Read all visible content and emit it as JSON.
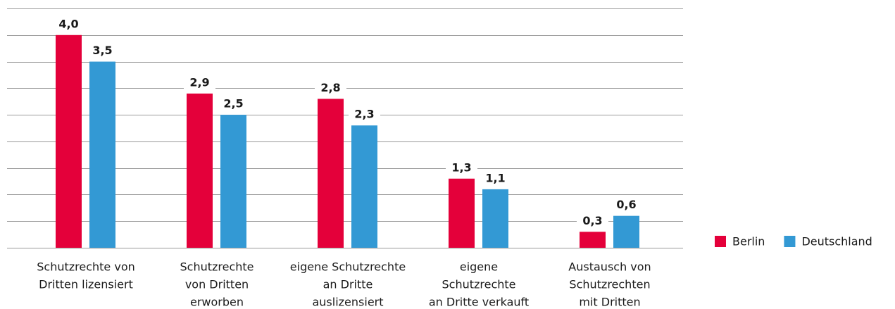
{
  "chart_data": {
    "type": "bar",
    "categories": [
      [
        "Schutzrechte von",
        "Dritten lizensiert"
      ],
      [
        "Schutzrechte",
        "von Dritten",
        "erworben"
      ],
      [
        "eigene Schutzrechte",
        "an Dritte",
        "auslizensiert"
      ],
      [
        "eigene",
        "Schutzrechte",
        "an Dritte verkauft"
      ],
      [
        "Austausch von",
        "Schutzrechten",
        "mit Dritten"
      ]
    ],
    "series": [
      {
        "name": "Berlin",
        "color": "#e4003a",
        "values": [
          4.0,
          2.9,
          2.8,
          1.3,
          0.3
        ],
        "value_labels": [
          "4,0",
          "2,9",
          "2,8",
          "1,3",
          "0,3"
        ]
      },
      {
        "name": "Deutschland",
        "color": "#3399d4",
        "values": [
          3.5,
          2.5,
          2.3,
          1.1,
          0.6
        ],
        "value_labels": [
          "3,5",
          "2,5",
          "2,3",
          "1,1",
          "0,6"
        ]
      }
    ],
    "ylim": [
      0,
      4.5
    ],
    "yticks": [
      0,
      0.5,
      1,
      1.5,
      2,
      2.5,
      3,
      3.5,
      4,
      4.5
    ],
    "grid": true,
    "legend": "bottom-right"
  }
}
